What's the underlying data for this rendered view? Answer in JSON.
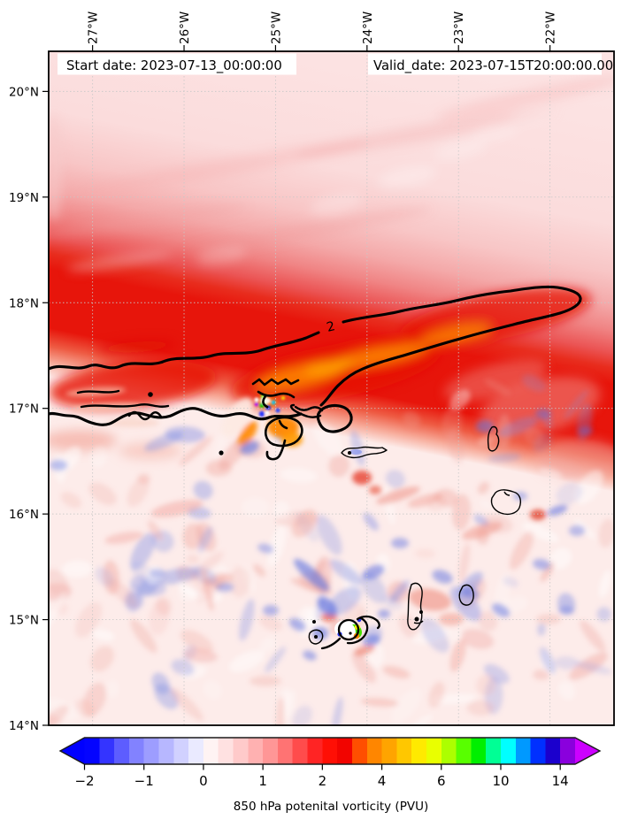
{
  "figure": {
    "title_left": "Start date: 2023-07-13_00:00:00",
    "title_right": "Valid_date: 2023-07-15T20:00:00.00"
  },
  "chart_data": {
    "type": "heatmap",
    "description": "Filled-contour map of 850 hPa potential vorticity over the eastern tropical Atlantic / Cape Verde region. A band of PV greater than 2 PVU (outlined by a thick black contour labeled 2) stretches WSW-ENE near 17-18N, with embedded maxima above 4-6 PVU. Mottled weak positive/negative PV covers the region south of 17N, with a small intense vortex near 24.3W 14.9N.",
    "x_axis": {
      "side": "top",
      "tick_labels": [
        "27°W",
        "26°W",
        "25°W",
        "24°W",
        "23°W",
        "22°W"
      ],
      "tick_values_deg_west": [
        27,
        26,
        25,
        24,
        23,
        22
      ],
      "range_deg_west": [
        27.48,
        21.3
      ]
    },
    "y_axis": {
      "side": "left",
      "tick_labels": [
        "20°N",
        "19°N",
        "18°N",
        "17°N",
        "16°N",
        "15°N",
        "14°N"
      ],
      "tick_values_deg_north": [
        20,
        19,
        18,
        17,
        16,
        15,
        14
      ],
      "range_deg_north": [
        20.38,
        14.0
      ]
    },
    "grid": true,
    "annotations": {
      "start_date_label": "Start date: 2023-07-13_00:00:00",
      "valid_date_label": "Valid_date: 2023-07-15T20:00:00.00"
    },
    "contour": {
      "label": "2",
      "value_pvu": 2
    },
    "colorbar": {
      "label": "850 hPa potenital vorticity (PVU)",
      "orientation": "horizontal",
      "extend": "both",
      "tick_labels": [
        "−2",
        "−1",
        "0",
        "1",
        "2",
        "4",
        "6",
        "10",
        "14"
      ],
      "tick_cell_boundaries": [
        0,
        4,
        8,
        12,
        16,
        20,
        24,
        28,
        32
      ],
      "n_cells": 33,
      "levels": [
        -2,
        -1.75,
        -1.5,
        -1.25,
        -1,
        -0.75,
        -0.5,
        -0.25,
        0,
        0.25,
        0.5,
        0.75,
        1,
        1.25,
        1.5,
        1.75,
        2,
        2.5,
        3,
        3.5,
        4,
        4.5,
        5,
        5.5,
        6,
        7,
        8,
        9,
        10,
        11,
        12,
        13,
        14,
        16
      ],
      "cell_colors": [
        "#0404ff",
        "#3434ff",
        "#5d5dff",
        "#8282ff",
        "#9d9dff",
        "#b7b7ff",
        "#d1d1ff",
        "#eaeaff",
        "#fff3f3",
        "#ffe1e1",
        "#ffcaca",
        "#ffb1b1",
        "#ff9696",
        "#ff7373",
        "#ff4c4c",
        "#ff2424",
        "#ff0f05",
        "#f20400",
        "#ff4e00",
        "#ff8600",
        "#ffa400",
        "#ffc700",
        "#ffea00",
        "#e9ff00",
        "#acff00",
        "#58ff00",
        "#00ef00",
        "#00ff95",
        "#00ffff",
        "#0099ff",
        "#0030ff",
        "#1b00cd",
        "#8a00dd"
      ],
      "under_color": "#0000ff",
      "over_color": "#cc00ff"
    }
  }
}
